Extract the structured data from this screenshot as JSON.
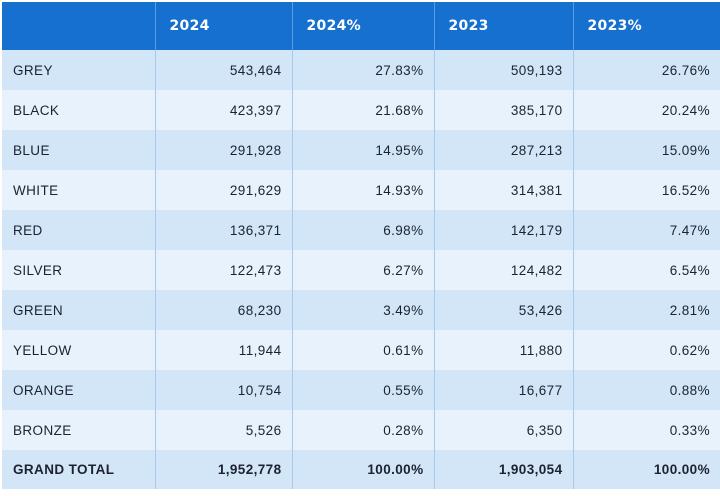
{
  "chart_data": {
    "type": "table",
    "columns": [
      "",
      "2024",
      "2024%",
      "2023",
      "2023%"
    ],
    "rows": [
      [
        "GREY",
        "543,464",
        "27.83%",
        "509,193",
        "26.76%"
      ],
      [
        "BLACK",
        "423,397",
        "21.68%",
        "385,170",
        "20.24%"
      ],
      [
        "BLUE",
        "291,928",
        "14.95%",
        "287,213",
        "15.09%"
      ],
      [
        "WHITE",
        "291,629",
        "14.93%",
        "314,381",
        "16.52%"
      ],
      [
        "RED",
        "136,371",
        "6.98%",
        "142,179",
        "7.47%"
      ],
      [
        "SILVER",
        "122,473",
        "6.27%",
        "124,482",
        "6.54%"
      ],
      [
        "GREEN",
        "68,230",
        "3.49%",
        "53,426",
        "2.81%"
      ],
      [
        "YELLOW",
        "11,944",
        "0.61%",
        "11,880",
        "0.62%"
      ],
      [
        "ORANGE",
        "10,754",
        "0.55%",
        "16,677",
        "0.88%"
      ],
      [
        "BRONZE",
        "5,526",
        "0.28%",
        "6,350",
        "0.33%"
      ]
    ],
    "total": [
      "GRAND TOTAL",
      "1,952,778",
      "100.00%",
      "1,903,054",
      "100.00%"
    ]
  },
  "colors": {
    "header_bg": "#1670cf",
    "header_text": "#ffffff",
    "row_dark": "#d2e6f8",
    "row_light": "#e8f2fc",
    "text": "#1c2230"
  }
}
